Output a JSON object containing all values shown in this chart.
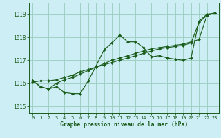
{
  "title": "Graphe pression niveau de la mer (hPa)",
  "bg_color": "#cdeef5",
  "grid_color": "#99ccbb",
  "line_color": "#1a5c1a",
  "marker_color": "#1a5c1a",
  "xlim": [
    -0.5,
    23.5
  ],
  "ylim": [
    1014.7,
    1019.5
  ],
  "yticks": [
    1015,
    1016,
    1017,
    1018,
    1019
  ],
  "xticks": [
    0,
    1,
    2,
    3,
    4,
    5,
    6,
    7,
    8,
    9,
    10,
    11,
    12,
    13,
    14,
    15,
    16,
    17,
    18,
    19,
    20,
    21,
    22,
    23
  ],
  "series": [
    [
      1016.1,
      1015.85,
      1015.75,
      1015.85,
      1015.6,
      1015.55,
      1015.55,
      1016.1,
      1016.75,
      1017.45,
      1017.75,
      1018.1,
      1017.8,
      1017.8,
      1017.55,
      1017.15,
      1017.2,
      1017.1,
      1017.05,
      1017.0,
      1017.1,
      1018.7,
      1019.0,
      1019.05
    ],
    [
      1016.1,
      1015.85,
      1015.75,
      1016.0,
      1016.15,
      1016.25,
      1016.4,
      1016.55,
      1016.7,
      1016.85,
      1017.0,
      1017.1,
      1017.2,
      1017.3,
      1017.4,
      1017.5,
      1017.55,
      1017.6,
      1017.65,
      1017.7,
      1017.8,
      1017.9,
      1018.95,
      1019.05
    ],
    [
      1016.05,
      1016.1,
      1016.1,
      1016.15,
      1016.25,
      1016.35,
      1016.5,
      1016.6,
      1016.7,
      1016.8,
      1016.9,
      1017.0,
      1017.1,
      1017.2,
      1017.3,
      1017.4,
      1017.5,
      1017.55,
      1017.6,
      1017.65,
      1017.75,
      1018.65,
      1018.95,
      1019.05
    ]
  ]
}
